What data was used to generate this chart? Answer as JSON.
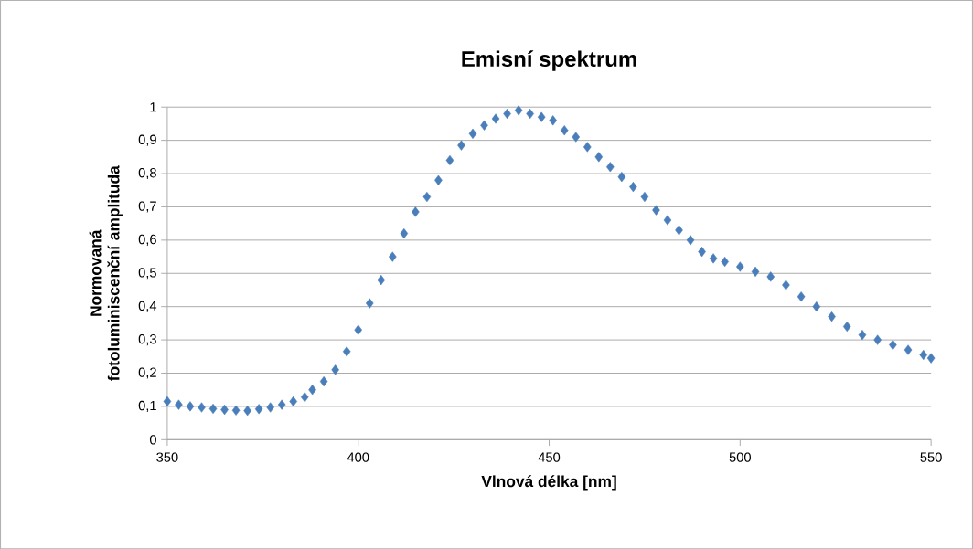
{
  "chart_data": {
    "type": "scatter",
    "title": "Emisní spektrum",
    "xlabel": "Vlnová délka [nm]",
    "ylabel": "Normovaná fotoluminiscenční amplituda",
    "x": [
      350,
      353,
      356,
      359,
      362,
      365,
      368,
      371,
      374,
      377,
      380,
      383,
      386,
      388,
      391,
      394,
      397,
      400,
      403,
      406,
      409,
      412,
      415,
      418,
      421,
      424,
      427,
      430,
      433,
      436,
      439,
      442,
      445,
      448,
      451,
      454,
      457,
      460,
      463,
      466,
      469,
      472,
      475,
      478,
      481,
      484,
      487,
      490,
      493,
      496,
      500,
      504,
      508,
      512,
      516,
      520,
      524,
      528,
      532,
      536,
      540,
      544,
      548,
      550
    ],
    "values": [
      0.115,
      0.105,
      0.1,
      0.097,
      0.093,
      0.09,
      0.088,
      0.087,
      0.092,
      0.097,
      0.105,
      0.115,
      0.128,
      0.15,
      0.175,
      0.21,
      0.265,
      0.33,
      0.41,
      0.48,
      0.55,
      0.62,
      0.685,
      0.73,
      0.78,
      0.84,
      0.885,
      0.92,
      0.945,
      0.965,
      0.98,
      0.99,
      0.98,
      0.97,
      0.96,
      0.93,
      0.91,
      0.88,
      0.85,
      0.82,
      0.79,
      0.76,
      0.73,
      0.69,
      0.66,
      0.63,
      0.6,
      0.565,
      0.545,
      0.535,
      0.52,
      0.505,
      0.49,
      0.465,
      0.43,
      0.4,
      0.37,
      0.34,
      0.315,
      0.3,
      0.285,
      0.27,
      0.255,
      0.245
    ],
    "color": "#4a7ebb",
    "marker": "diamond",
    "grid": "y",
    "xlim": [
      350,
      550
    ],
    "xticks": [
      350,
      400,
      450,
      500,
      550
    ],
    "ylim": [
      0,
      1
    ],
    "yticks": [
      0,
      {
        "value": 0.1,
        "label": "0,1"
      },
      {
        "value": 0.2,
        "label": "0,2"
      },
      {
        "value": 0.3,
        "label": "0,3"
      },
      {
        "value": 0.4,
        "label": "0,4"
      },
      {
        "value": 0.5,
        "label": "0,5"
      },
      {
        "value": 0.6,
        "label": "0,6"
      },
      {
        "value": 0.7,
        "label": "0,7"
      },
      {
        "value": 0.8,
        "label": "0,8"
      },
      {
        "value": 0.9,
        "label": "0,9"
      },
      1
    ]
  }
}
